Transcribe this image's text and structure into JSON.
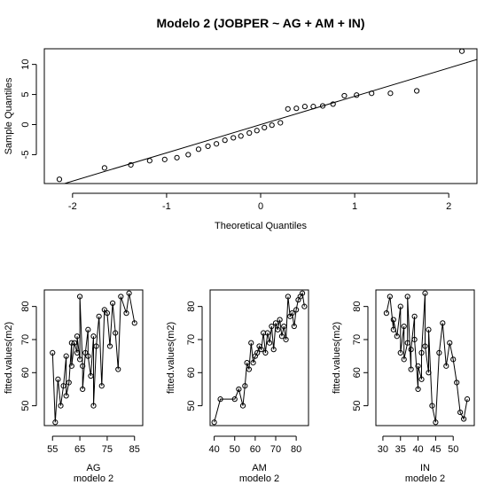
{
  "chart_data": [
    {
      "type": "scatter",
      "title": "Modelo 2 (JOBPER ~ AG + AM + IN)",
      "xlabel": "Theoretical Quantiles",
      "ylabel": "Sample Quantiles",
      "xlim": [
        -2.3,
        2.3
      ],
      "ylim": [
        -9.8,
        12.6
      ],
      "xticks": [
        "-2",
        "-1",
        "0",
        "1",
        "2"
      ],
      "yticks": [
        "-5",
        "0",
        "5",
        "10"
      ],
      "x": [
        -2.14,
        -1.66,
        -1.38,
        -1.18,
        -1.02,
        -0.89,
        -0.77,
        -0.66,
        -0.56,
        -0.47,
        -0.38,
        -0.29,
        -0.21,
        -0.12,
        -0.04,
        0.04,
        0.12,
        0.21,
        0.29,
        0.38,
        0.47,
        0.56,
        0.66,
        0.77,
        0.89,
        1.02,
        1.18,
        1.38,
        1.66,
        2.14
      ],
      "y": [
        -9.1,
        -7.2,
        -6.7,
        -6.0,
        -5.8,
        -5.5,
        -5.0,
        -4.1,
        -3.6,
        -3.2,
        -2.6,
        -2.2,
        -1.9,
        -1.4,
        -1.0,
        -0.5,
        -0.1,
        0.3,
        2.6,
        2.7,
        3.0,
        3.0,
        3.1,
        3.4,
        4.8,
        4.9,
        5.2,
        5.2,
        5.6,
        12.2
      ],
      "qqline": {
        "intercept": 0.0,
        "slope": 4.7
      }
    },
    {
      "type": "line",
      "xlabel": "AG",
      "ylabel": "fitted.values(m2)",
      "caption": "modelo 2",
      "xlim": [
        52,
        88
      ],
      "ylim": [
        44,
        85
      ],
      "xticks": [
        "55",
        "65",
        "75",
        "85"
      ],
      "yticks": [
        "50",
        "60",
        "70",
        "80"
      ],
      "x": [
        55,
        56,
        57,
        58,
        59,
        60,
        60,
        61,
        62,
        62,
        63,
        64,
        64,
        65,
        65,
        66,
        66,
        67,
        68,
        68,
        69,
        70,
        70,
        71,
        72,
        73,
        74,
        75,
        76,
        77,
        78,
        79,
        80,
        82,
        83,
        85
      ],
      "y": [
        66,
        45,
        58,
        50,
        56,
        65,
        53,
        57,
        69,
        62,
        69,
        66,
        71,
        64,
        83,
        62,
        55,
        66,
        73,
        65,
        59,
        71,
        50,
        68,
        77,
        56,
        79,
        78,
        68,
        81,
        72,
        61,
        83,
        78,
        84,
        75
      ]
    },
    {
      "type": "line",
      "xlabel": "AM",
      "ylabel": "fitted.values(m2)",
      "caption": "modelo 2",
      "xlim": [
        38,
        86
      ],
      "ylim": [
        44,
        85
      ],
      "xticks": [
        "40",
        "50",
        "60",
        "70",
        "80"
      ],
      "yticks": [
        "50",
        "60",
        "70",
        "80"
      ],
      "x": [
        40,
        43,
        50,
        52,
        54,
        55,
        56,
        57,
        58,
        59,
        60,
        61,
        62,
        63,
        64,
        65,
        66,
        67,
        68,
        69,
        70,
        71,
        72,
        73,
        74,
        75,
        76,
        77,
        78,
        79,
        80,
        81,
        82,
        83,
        84
      ],
      "y": [
        45,
        52,
        52,
        55,
        50,
        56,
        63,
        61,
        69,
        63,
        65,
        66,
        68,
        67,
        72,
        66,
        72,
        69,
        74,
        67,
        75,
        73,
        76,
        71,
        74,
        70,
        83,
        77,
        78,
        74,
        79,
        82,
        83,
        84,
        80
      ]
    },
    {
      "type": "line",
      "xlabel": "IN",
      "ylabel": "fitted.values(m2)",
      "caption": "modelo 2",
      "xlim": [
        28,
        56
      ],
      "ylim": [
        44,
        85
      ],
      "xticks": [
        "30",
        "35",
        "40",
        "45",
        "50"
      ],
      "yticks": [
        "50",
        "60",
        "70",
        "80"
      ],
      "x": [
        31,
        32,
        33,
        33,
        34,
        35,
        35,
        36,
        36,
        37,
        37,
        38,
        38,
        39,
        39,
        40,
        40,
        41,
        41,
        42,
        42,
        43,
        43,
        44,
        45,
        46,
        47,
        48,
        49,
        50,
        51,
        52,
        53,
        54
      ],
      "y": [
        78,
        83,
        73,
        76,
        71,
        80,
        66,
        74,
        64,
        69,
        83,
        61,
        67,
        77,
        70,
        55,
        62,
        58,
        66,
        84,
        68,
        60,
        73,
        50,
        45,
        66,
        75,
        62,
        69,
        64,
        57,
        48,
        46,
        52
      ]
    }
  ]
}
